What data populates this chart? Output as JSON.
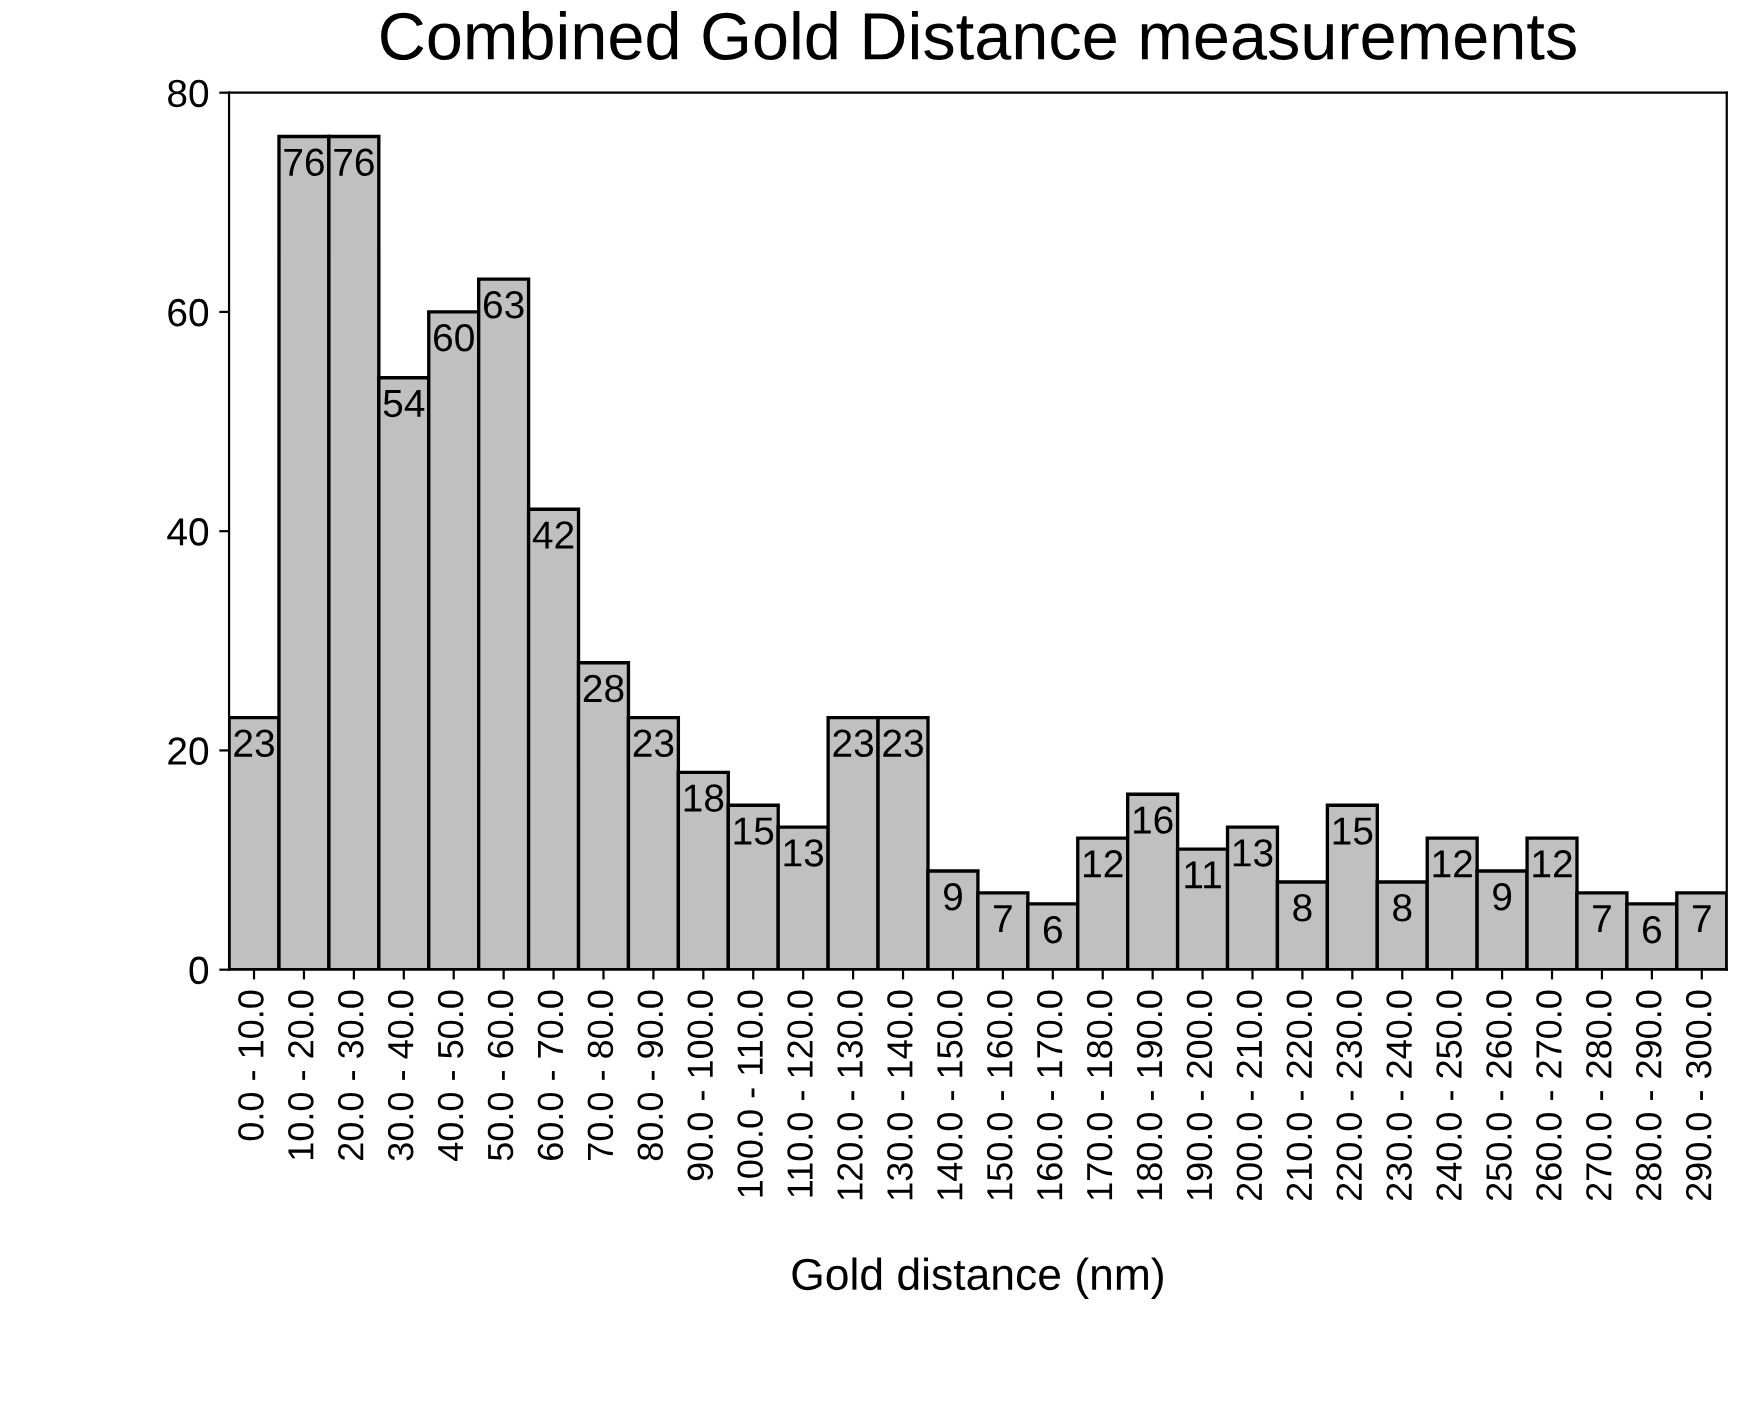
{
  "chart_data": {
    "type": "bar",
    "title": "Combined Gold Distance measurements",
    "xlabel": "Gold distance (nm)",
    "categories": [
      "0.0 - 10.0",
      "10.0 - 20.0",
      "20.0 - 30.0",
      "30.0 - 40.0",
      "40.0 - 50.0",
      "50.0 - 60.0",
      "60.0 - 70.0",
      "70.0 - 80.0",
      "80.0 - 90.0",
      "90.0 - 100.0",
      "100.0 - 110.0",
      "110.0 - 120.0",
      "120.0 - 130.0",
      "130.0 - 140.0",
      "140.0 - 150.0",
      "150.0 - 160.0",
      "160.0 - 170.0",
      "170.0 - 180.0",
      "180.0 - 190.0",
      "190.0 - 200.0",
      "200.0 - 210.0",
      "210.0 - 220.0",
      "220.0 - 230.0",
      "230.0 - 240.0",
      "240.0 - 250.0",
      "250.0 - 260.0",
      "260.0 - 270.0",
      "270.0 - 280.0",
      "280.0 - 290.0",
      "290.0 - 300.0"
    ],
    "values": [
      23,
      76,
      76,
      54,
      60,
      63,
      42,
      28,
      23,
      18,
      15,
      13,
      23,
      23,
      9,
      7,
      6,
      12,
      16,
      11,
      13,
      8,
      15,
      8,
      12,
      9,
      12,
      7,
      6,
      7
    ],
    "color": "#c0c0c0",
    "ylim": [
      0,
      80
    ],
    "yticks": [
      0,
      20,
      40,
      60,
      80
    ],
    "grid": false,
    "data_labels": true
  }
}
